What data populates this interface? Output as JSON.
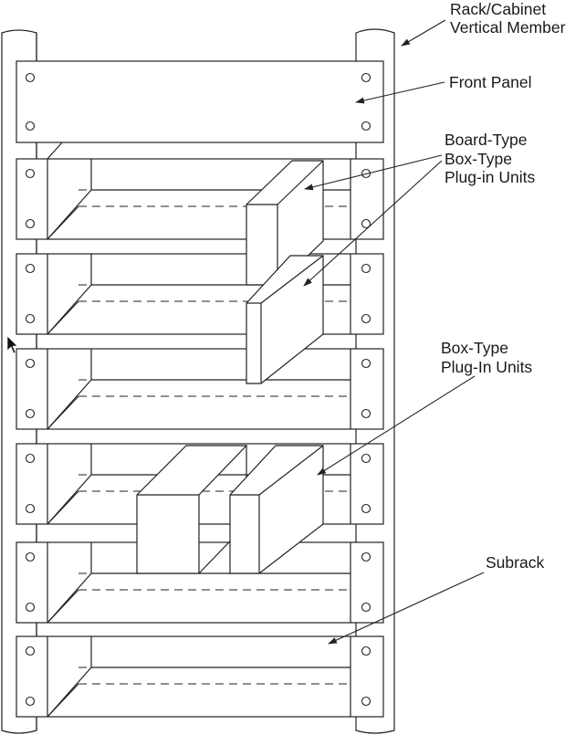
{
  "labels": {
    "rack_line1": "Rack/Cabinet",
    "rack_line2": "Vertical Member",
    "front_panel": "Front Panel",
    "board_line1": "Board-Type",
    "board_line2": "Box-Type",
    "board_line3": "Plug-in Units",
    "box_line1": "Box-Type",
    "box_line2": "Plug-In Units",
    "subrack": "Subrack"
  }
}
